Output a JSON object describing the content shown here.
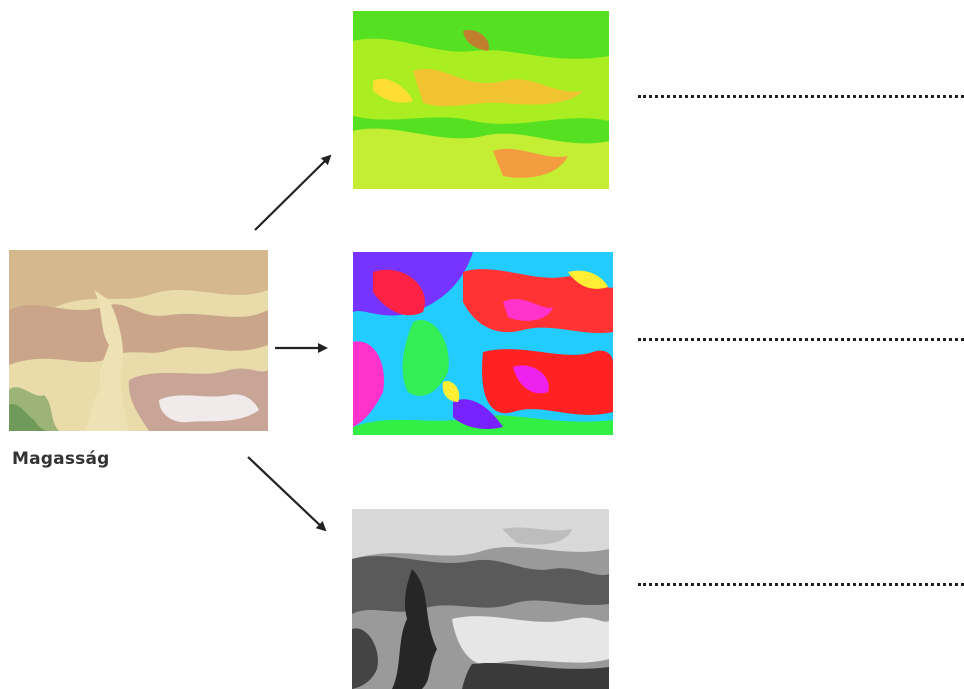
{
  "source": {
    "label": "Magasság"
  },
  "colors": {
    "elevation": [
      "#d7c7a0",
      "#c9a98a",
      "#e8ddb0",
      "#8fa86a",
      "#f2ecec"
    ],
    "slope": [
      "#33dd22",
      "#aaee22",
      "#ffaa33",
      "#ee4433"
    ],
    "aspect": [
      "#ff2222",
      "#ff33cc",
      "#7722ff",
      "#22ccff",
      "#33ee44",
      "#ffee33"
    ],
    "hillshade": [
      "#111111",
      "#555555",
      "#999999",
      "#dddddd"
    ],
    "arrow": "#222222"
  },
  "outputs": [
    {
      "name": "slope-map",
      "answer_blank": ""
    },
    {
      "name": "aspect-map",
      "answer_blank": ""
    },
    {
      "name": "hillshade-map",
      "answer_blank": ""
    }
  ]
}
